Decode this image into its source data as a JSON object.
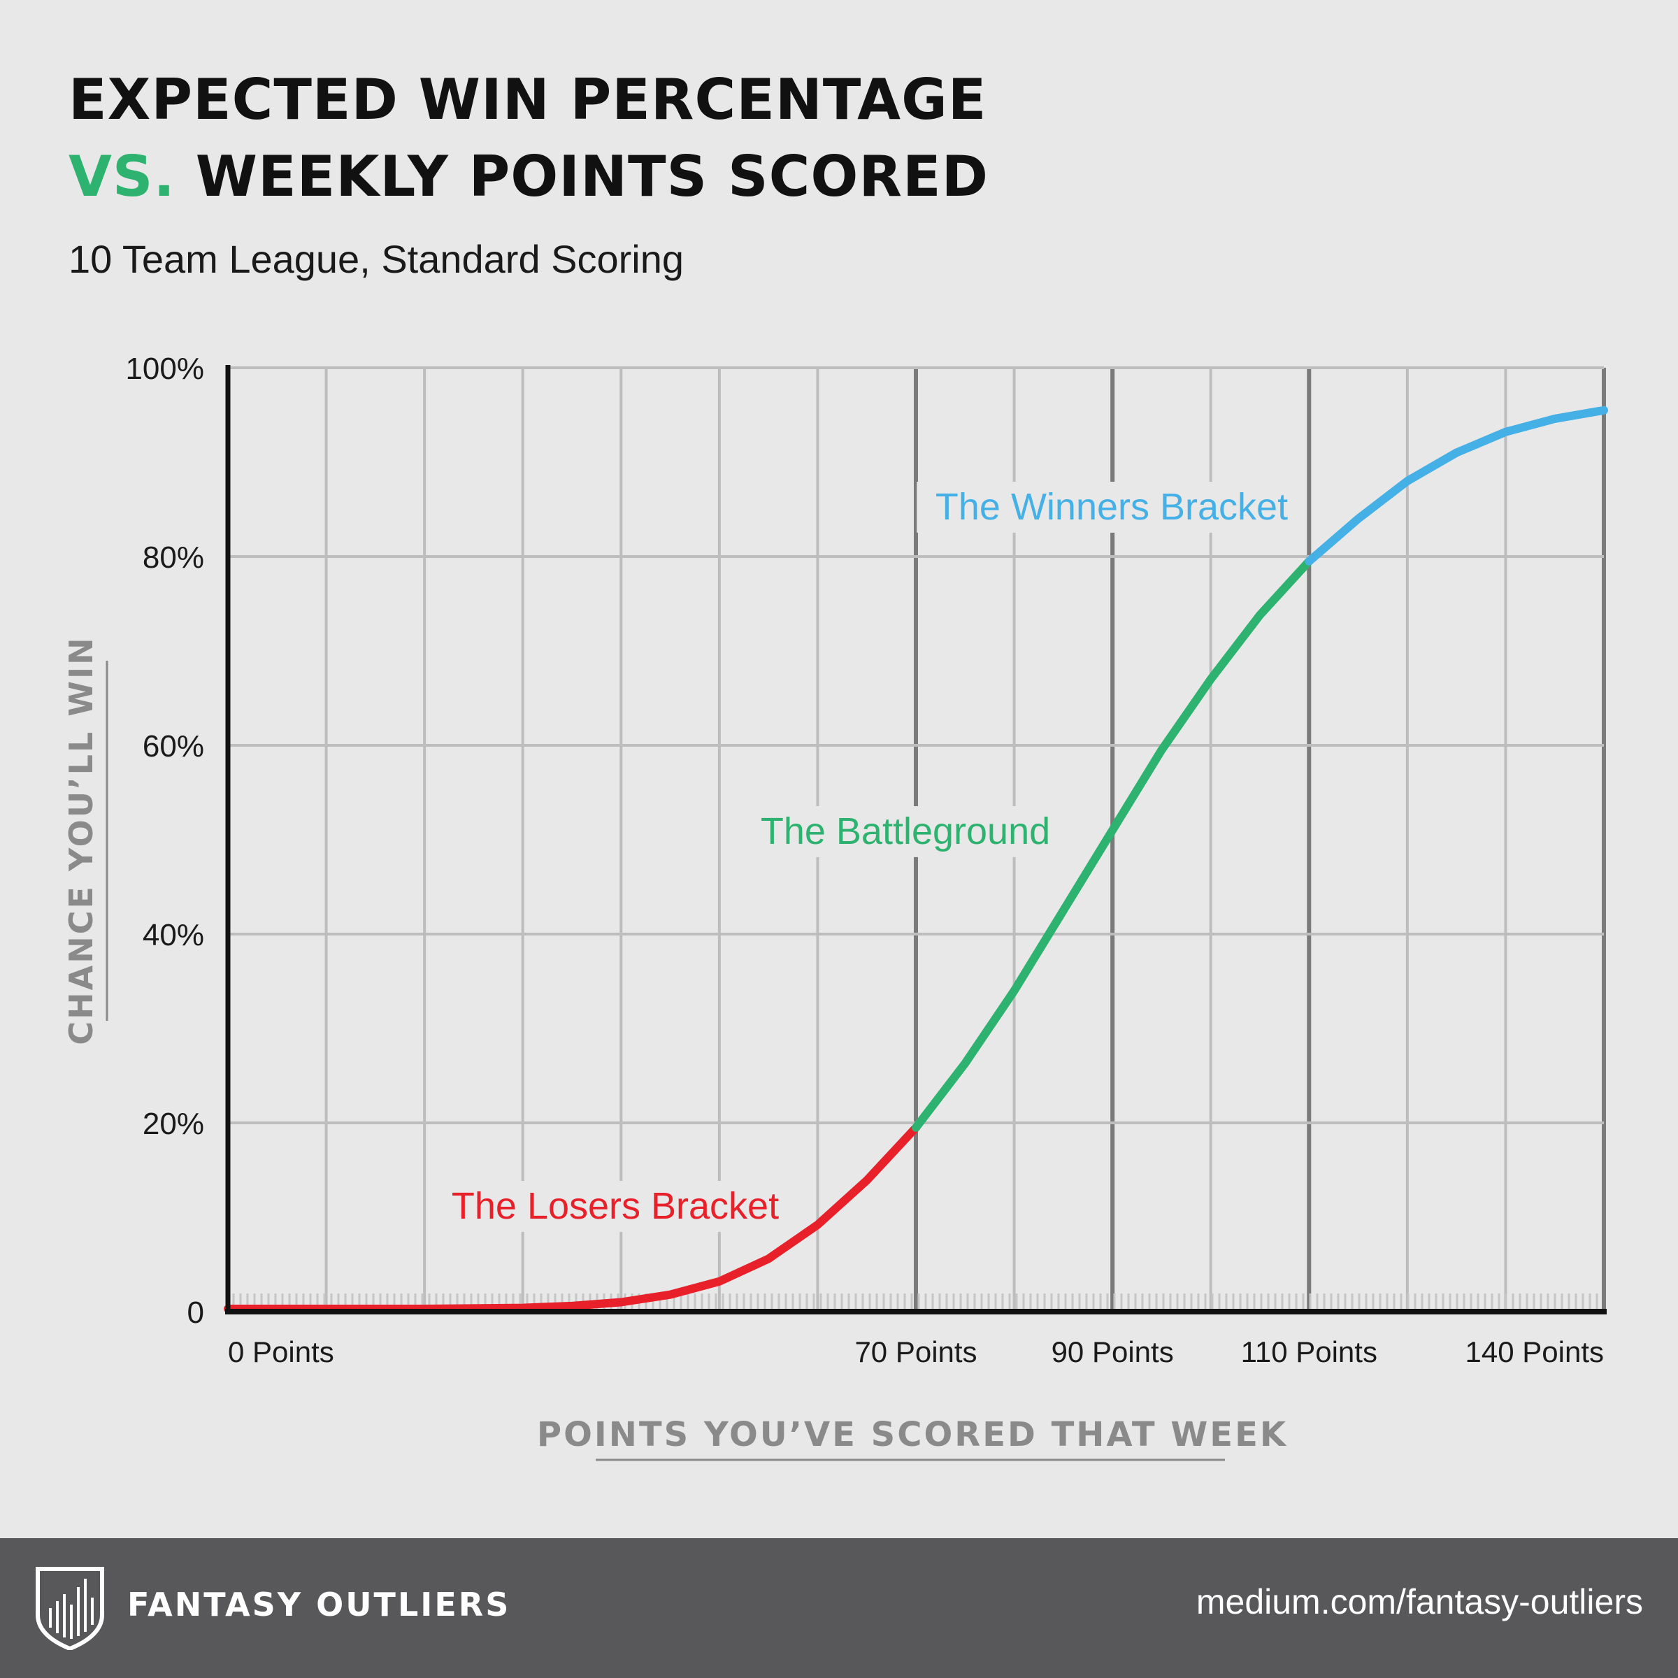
{
  "header": {
    "title_line1": "EXPECTED WIN PERCENTAGE",
    "title_vs": "VS.",
    "title_line2_rest": "WEEKLY POINTS SCORED",
    "subtitle": "10 Team League, Standard Scoring"
  },
  "chart_data": {
    "type": "line",
    "title": "EXPECTED WIN PERCENTAGE VS. WEEKLY POINTS SCORED",
    "subtitle": "10 Team League, Standard Scoring",
    "xlabel": "POINTS YOU’VE SCORED THAT WEEK",
    "ylabel": "CHANCE YOU’LL WIN",
    "xlim": [
      0,
      140
    ],
    "ylim": [
      0,
      100
    ],
    "y_ticks": [
      0,
      20,
      40,
      60,
      80,
      100
    ],
    "y_tick_labels": [
      "0",
      "20%",
      "40%",
      "60%",
      "80%",
      "100%"
    ],
    "x_ticks": [
      0,
      70,
      90,
      110,
      140
    ],
    "x_tick_labels": [
      "0 Points",
      "70 Points",
      "90 Points",
      "110 Points",
      "140 Points"
    ],
    "grid": true,
    "series": [
      {
        "name": "The Losers Bracket",
        "color": "#e8202a",
        "x": [
          0,
          10,
          20,
          30,
          35,
          40,
          45,
          50,
          55,
          60,
          65,
          70
        ],
        "y": [
          0.3,
          0.3,
          0.3,
          0.4,
          0.6,
          1.0,
          1.8,
          3.2,
          5.6,
          9.2,
          13.9,
          19.5
        ]
      },
      {
        "name": "The Battleground",
        "color": "#2db36f",
        "x": [
          70,
          75,
          80,
          85,
          90,
          95,
          100,
          105,
          110
        ],
        "y": [
          19.5,
          26.3,
          34.0,
          42.5,
          51.0,
          59.5,
          67.0,
          73.8,
          79.5
        ]
      },
      {
        "name": "The Winners Bracket",
        "color": "#45b0e5",
        "x": [
          110,
          115,
          120,
          125,
          130,
          135,
          140
        ],
        "y": [
          79.5,
          84.0,
          88.0,
          91.0,
          93.2,
          94.6,
          95.5
        ]
      }
    ]
  },
  "footer": {
    "brand": "FANTASY OUTLIERS",
    "url": "medium.com/fantasy-outliers"
  }
}
